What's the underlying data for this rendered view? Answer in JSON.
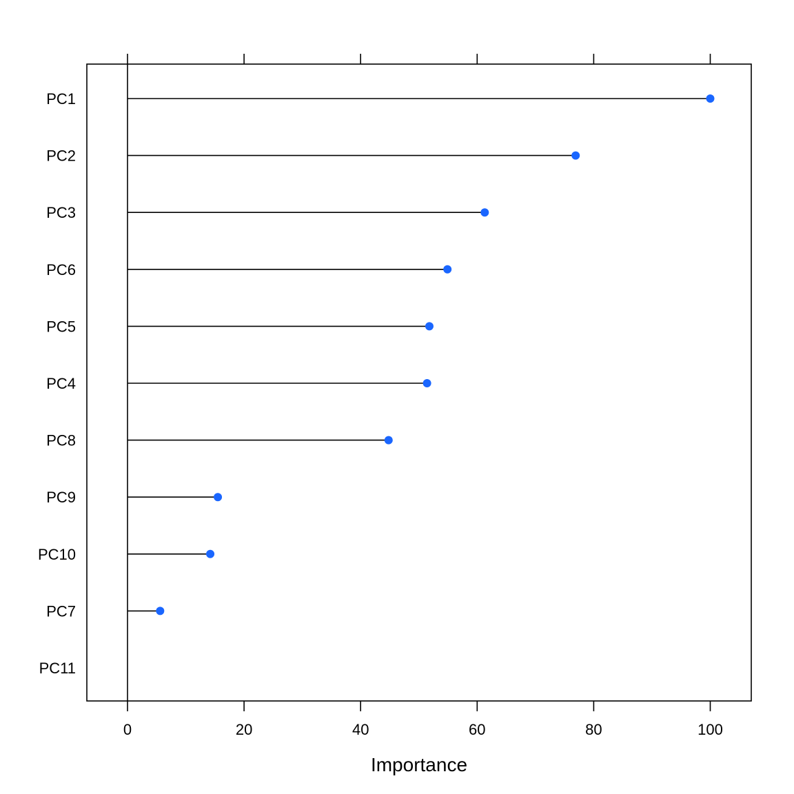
{
  "chart_data": {
    "type": "dot",
    "title": "",
    "xlabel": "Importance",
    "ylabel": "",
    "xlim": [
      -7,
      107
    ],
    "xticks": [
      0,
      20,
      40,
      60,
      80,
      100
    ],
    "categories": [
      "PC1",
      "PC2",
      "PC3",
      "PC6",
      "PC5",
      "PC4",
      "PC8",
      "PC9",
      "PC10",
      "PC7",
      "PC11"
    ],
    "values": [
      100,
      76.9,
      61.3,
      54.9,
      51.8,
      51.4,
      44.8,
      15.5,
      14.2,
      5.6,
      0
    ],
    "grid": false,
    "legend": "none",
    "colors": {
      "point": "#1a66ff",
      "stem": "#000000",
      "frame": "#000000"
    }
  }
}
